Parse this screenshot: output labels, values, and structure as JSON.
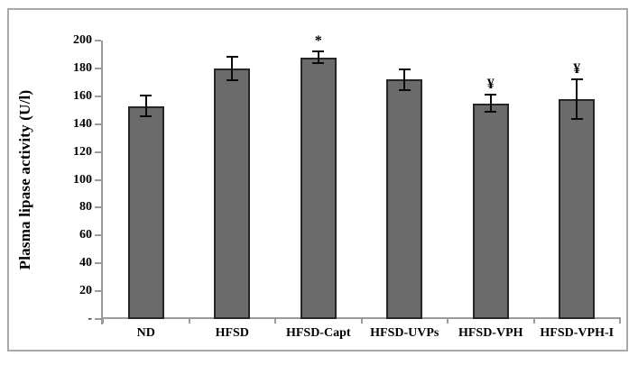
{
  "figure": {
    "background": "#ffffff",
    "frame_border_color": "#a9a9a9"
  },
  "chart_data": {
    "type": "bar",
    "title": "",
    "xlabel": "",
    "ylabel": "Plasma lipase activity (U/l)",
    "ylim": [
      0,
      200
    ],
    "ytick_step": 20,
    "ytick_labels": [
      "200",
      "180",
      "160",
      "140",
      "120",
      "100",
      "80",
      "60",
      "40",
      "20",
      "-"
    ],
    "categories": [
      "ND",
      "HFSD",
      "HFSD-Capt",
      "HFSD-UVPs",
      "HFSD-VPH",
      "HFSD-VPH-I"
    ],
    "values": [
      153,
      180,
      188,
      172,
      155,
      158
    ],
    "errors": [
      8,
      9,
      5,
      8,
      7,
      15
    ],
    "annotations": [
      "",
      "",
      "*",
      "",
      "¥",
      "¥"
    ],
    "grid": false,
    "legend": "none",
    "bar_fill_color": "#6b6b6b",
    "bar_border_color": "#262626",
    "error_bar_color": "#0a0a0a",
    "axis_color": "#9b9b9b",
    "text_color": "#000000"
  }
}
